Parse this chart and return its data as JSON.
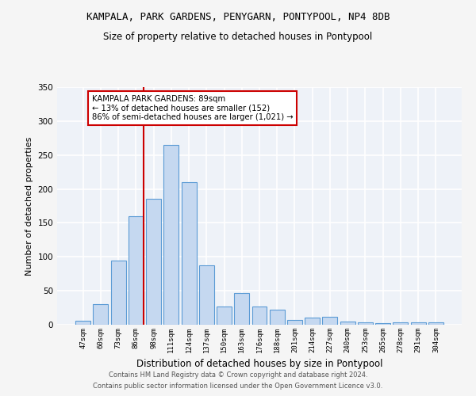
{
  "title": "KAMPALA, PARK GARDENS, PENYGARN, PONTYPOOL, NP4 8DB",
  "subtitle": "Size of property relative to detached houses in Pontypool",
  "xlabel": "Distribution of detached houses by size in Pontypool",
  "ylabel": "Number of detached properties",
  "categories": [
    "47sqm",
    "60sqm",
    "73sqm",
    "86sqm",
    "98sqm",
    "111sqm",
    "124sqm",
    "137sqm",
    "150sqm",
    "163sqm",
    "176sqm",
    "188sqm",
    "201sqm",
    "214sqm",
    "227sqm",
    "240sqm",
    "253sqm",
    "265sqm",
    "278sqm",
    "291sqm",
    "304sqm"
  ],
  "values": [
    6,
    30,
    95,
    160,
    185,
    265,
    210,
    88,
    27,
    47,
    27,
    22,
    7,
    10,
    12,
    5,
    3,
    2,
    3,
    3,
    3
  ],
  "bar_color": "#c5d8f0",
  "bar_edge_color": "#5b9bd5",
  "vline_x_index": 3,
  "vline_color": "#cc0000",
  "annotation_line1": "KAMPALA PARK GARDENS: 89sqm",
  "annotation_line2": "← 13% of detached houses are smaller (152)",
  "annotation_line3": "86% of semi-detached houses are larger (1,021) →",
  "annotation_box_color": "#ffffff",
  "annotation_box_edge_color": "#cc0000",
  "bg_color": "#eef2f8",
  "grid_color": "#ffffff",
  "ylim": [
    0,
    350
  ],
  "yticks": [
    0,
    50,
    100,
    150,
    200,
    250,
    300,
    350
  ],
  "footer1": "Contains HM Land Registry data © Crown copyright and database right 2024.",
  "footer2": "Contains public sector information licensed under the Open Government Licence v3.0."
}
